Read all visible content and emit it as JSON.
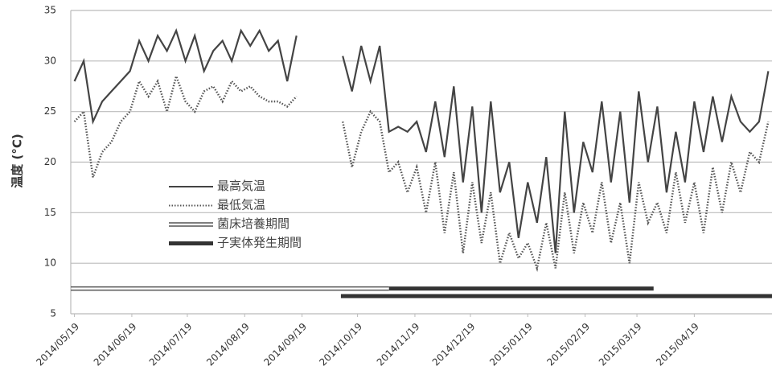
{
  "chart_data": {
    "type": "line",
    "y_label": "温度 (°C)",
    "x": [
      "2014/05/19",
      "2014/05/24",
      "2014/05/29",
      "2014/06/03",
      "2014/06/08",
      "2014/06/13",
      "2014/06/18",
      "2014/06/23",
      "2014/06/28",
      "2014/07/03",
      "2014/07/08",
      "2014/07/13",
      "2014/07/18",
      "2014/07/23",
      "2014/07/28",
      "2014/08/02",
      "2014/08/07",
      "2014/08/12",
      "2014/08/17",
      "2014/08/22",
      "2014/08/27",
      "2014/09/01",
      "2014/09/06",
      "2014/09/11",
      "2014/09/16",
      "2014/09/21",
      "2014/09/26",
      "2014/10/01",
      "2014/10/06",
      "2014/10/11",
      "2014/10/16",
      "2014/10/21",
      "2014/10/26",
      "2014/10/31",
      "2014/11/05",
      "2014/11/10",
      "2014/11/15",
      "2014/11/20",
      "2014/11/25",
      "2014/11/30",
      "2014/12/05",
      "2014/12/10",
      "2014/12/15",
      "2014/12/20",
      "2014/12/25",
      "2014/12/30",
      "2015/01/04",
      "2015/01/09",
      "2015/01/14",
      "2015/01/19",
      "2015/01/24",
      "2015/01/29",
      "2015/02/03",
      "2015/02/08",
      "2015/02/13",
      "2015/02/18",
      "2015/02/23",
      "2015/02/28",
      "2015/03/05",
      "2015/03/10",
      "2015/03/15",
      "2015/03/20",
      "2015/03/25",
      "2015/03/30",
      "2015/04/04",
      "2015/04/09",
      "2015/04/14",
      "2015/04/19",
      "2015/04/24",
      "2015/04/29",
      "2015/05/04",
      "2015/05/09",
      "2015/05/14",
      "2015/05/19",
      "2015/05/24",
      "2015/05/29"
    ],
    "series": [
      {
        "name": "最高気温",
        "color": "#444444",
        "line_style": "solid",
        "values": [
          28,
          30,
          24,
          26,
          27,
          28,
          29,
          32,
          30,
          32.5,
          31,
          33,
          30,
          32.5,
          29,
          31,
          32,
          30,
          33,
          31.5,
          33,
          31,
          32,
          28,
          32.5,
          null,
          null,
          null,
          null,
          30.5,
          27,
          31.5,
          28,
          31.5,
          23,
          23.5,
          23,
          24,
          21,
          26,
          20.5,
          27.5,
          18,
          25.5,
          15,
          26,
          17,
          20,
          12.5,
          18,
          14,
          20.5,
          11,
          25,
          15,
          22,
          19,
          26,
          18,
          25,
          16,
          27,
          20,
          25.5,
          17,
          23,
          18,
          26,
          21,
          26.5,
          22,
          26.5,
          24,
          23,
          24,
          29
        ]
      },
      {
        "name": "最低気温",
        "color": "#555555",
        "line_style": "dotted",
        "values": [
          24,
          25,
          18.5,
          21,
          22,
          24,
          25,
          28,
          26.5,
          28,
          25,
          28.5,
          26,
          25,
          27,
          27.5,
          26,
          28,
          27,
          27.5,
          26.5,
          26,
          26,
          25.5,
          26.5,
          null,
          null,
          null,
          null,
          24,
          19.5,
          23,
          25,
          24,
          19,
          20,
          17,
          19.5,
          15,
          20,
          13,
          19,
          11,
          18,
          12,
          17,
          10,
          13,
          10.5,
          12,
          9.5,
          14,
          9.5,
          17,
          11,
          16,
          13,
          18,
          12,
          16,
          10,
          18,
          14,
          16,
          13,
          19,
          14,
          18,
          13,
          19.5,
          15,
          20,
          17,
          21,
          20,
          24
        ]
      }
    ],
    "periods": [
      {
        "name": "菌床培養期間",
        "color": "#555555",
        "style": "double",
        "ranges": [
          {
            "start": "2014/05/17",
            "end": "2014/11/05",
            "y": 7.5
          }
        ]
      },
      {
        "name": "子実体発生期間",
        "color": "#333333",
        "style": "thick",
        "ranges": [
          {
            "start": "2014/11/05",
            "end": "2015/03/28",
            "y": 7.5
          },
          {
            "start": "2014/10/10",
            "end": "2015/05/31",
            "y": 6.75
          }
        ]
      }
    ],
    "xlim": [
      "2014/05/17",
      "2015/05/31"
    ],
    "xticks": [
      "2014/05/19",
      "2014/06/19",
      "2014/07/19",
      "2014/08/19",
      "2014/09/19",
      "2014/10/19",
      "2014/11/19",
      "2014/12/19",
      "2015/01/19",
      "2015/02/19",
      "2015/03/19",
      "2015/04/19"
    ],
    "ylim": [
      5,
      35
    ],
    "yticks": [
      5,
      10,
      15,
      20,
      25,
      30,
      35
    ],
    "grid": true
  }
}
